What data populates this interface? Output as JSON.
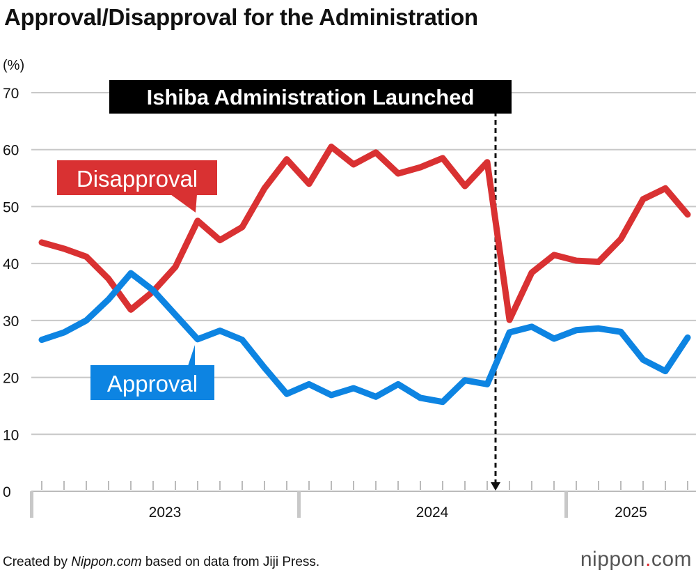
{
  "title": "Approval/Disapproval for the Administration",
  "footer": {
    "prefix": "Created by ",
    "source_name": "Nippon.com",
    "suffix": " based on data from Jiji Press."
  },
  "logo": {
    "text_a": "nippon",
    "text_dot": ".",
    "text_b": "com"
  },
  "chart_data": {
    "type": "line",
    "title": "Approval/Disapproval for the Administration",
    "ylabel": "(%)",
    "ylim": [
      0,
      70
    ],
    "yticks": [
      0,
      10,
      20,
      30,
      40,
      50,
      60,
      70
    ],
    "grid": true,
    "x": [
      "2023-01",
      "2023-02",
      "2023-03",
      "2023-04",
      "2023-05",
      "2023-06",
      "2023-07",
      "2023-08",
      "2023-09",
      "2023-10",
      "2023-11",
      "2023-12",
      "2024-01",
      "2024-02",
      "2024-03",
      "2024-04",
      "2024-05",
      "2024-06",
      "2024-07",
      "2024-08",
      "2024-09",
      "2024-10",
      "2024-11",
      "2024-12",
      "2025-01",
      "2025-02",
      "2025-03",
      "2025-04",
      "2025-05",
      "2025-06"
    ],
    "year_labels": [
      "2023",
      "2024",
      "2025"
    ],
    "series": [
      {
        "name": "Disapproval",
        "color": "#d93132",
        "values": [
          43.7,
          42.6,
          41.2,
          37.3,
          31.9,
          35.1,
          39.4,
          47.5,
          44.1,
          46.4,
          53.2,
          58.3,
          54.0,
          60.5,
          57.4,
          59.5,
          55.8,
          56.9,
          58.5,
          53.6,
          57.8,
          30.1,
          38.4,
          41.5,
          40.5,
          40.3,
          44.3,
          51.3,
          53.2,
          48.6
        ]
      },
      {
        "name": "Approval",
        "color": "#0d84e2",
        "values": [
          26.6,
          27.9,
          30.0,
          33.7,
          38.3,
          35.3,
          31.0,
          26.7,
          28.2,
          26.6,
          21.7,
          17.1,
          18.8,
          16.9,
          18.1,
          16.6,
          18.8,
          16.4,
          15.7,
          19.5,
          18.8,
          27.9,
          28.9,
          26.8,
          28.3,
          28.6,
          28.0,
          23.1,
          21.1,
          27.0
        ]
      }
    ],
    "annotation": {
      "text": "Ishiba Administration Launched",
      "x": "2024-10"
    }
  }
}
